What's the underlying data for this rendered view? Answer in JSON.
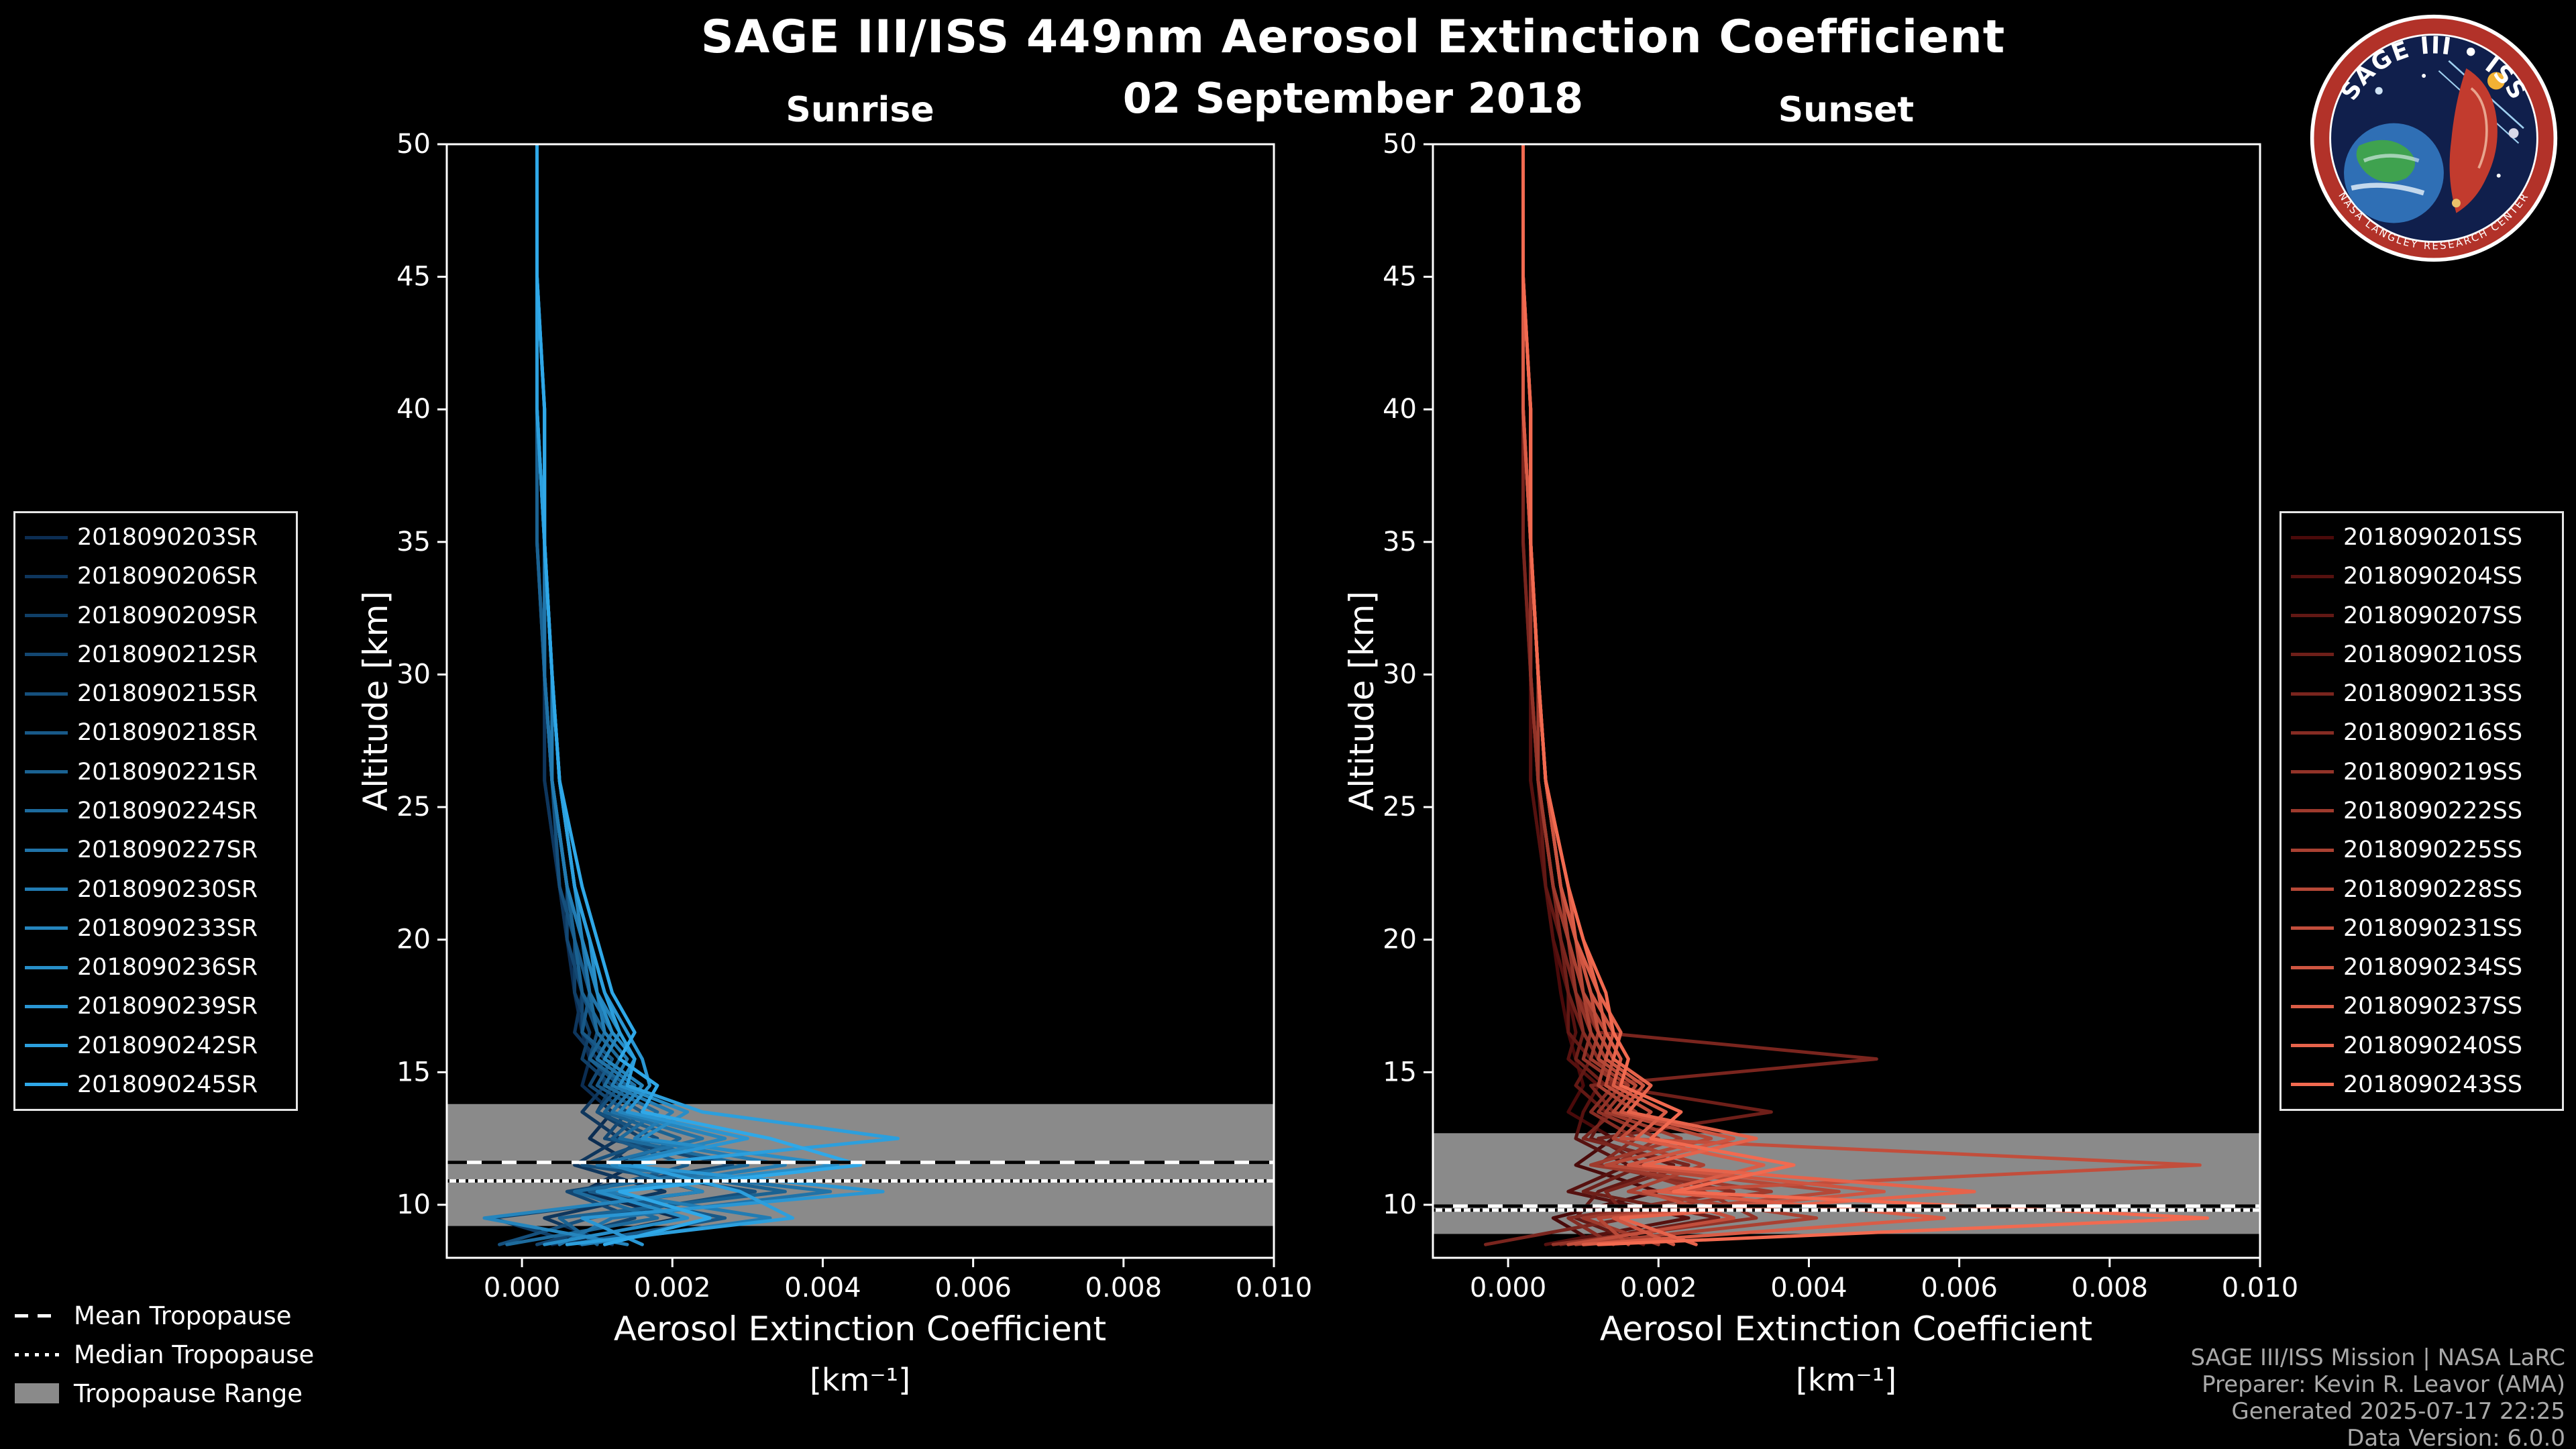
{
  "page": {
    "title": "SAGE III/ISS 449nm Aerosol Extinction Coefficient",
    "subtitle": "02 September 2018",
    "background": "#000000"
  },
  "logo": {
    "title": "SAGE III • ISS",
    "ring_text": "NASA LANGLEY RESEARCH CENTER"
  },
  "tropopause_legend": {
    "mean_label": "Mean Tropopause",
    "median_label": "Median Tropopause",
    "range_label": "Tropopause Range",
    "range_color": "#8a8a8a"
  },
  "credits": {
    "line1": "SAGE III/ISS Mission | NASA LaRC",
    "line2": "Preparer: Kevin R. Leavor (AMA)",
    "line3": "Generated 2025-07-17 22:25",
    "line4": "Data Version: 6.0.0"
  },
  "chart_data": [
    {
      "type": "line",
      "title": "Sunrise",
      "xlabel": "Aerosol Extinction Coefficient",
      "xlabel_units": "[km⁻¹]",
      "ylabel": "Altitude [km]",
      "xlim": [
        -0.001,
        0.01
      ],
      "ylim": [
        8,
        50
      ],
      "xticks": [
        0,
        0.002,
        0.004,
        0.006,
        0.008,
        0.01
      ],
      "xtick_labels": [
        "0.000",
        "0.002",
        "0.004",
        "0.006",
        "0.008",
        "0.010"
      ],
      "yticks": [
        10,
        15,
        20,
        25,
        30,
        35,
        40,
        45,
        50
      ],
      "ytick_labels": [
        "10",
        "15",
        "20",
        "25",
        "30",
        "35",
        "40",
        "45",
        "50"
      ],
      "grid": false,
      "legend_position": "outside-left",
      "tropopause": {
        "mean_km": 11.6,
        "median_km": 10.9,
        "range_km": [
          9.2,
          13.8
        ]
      },
      "altitudes_km": [
        50,
        45,
        40,
        35,
        30,
        26,
        22,
        20,
        18,
        16.5,
        15.5,
        14.5,
        13.5,
        12.5,
        11.5,
        10.5,
        9.5,
        8.5
      ],
      "series": [
        {
          "name": "2018090203SR",
          "color": "#0b2d52",
          "values": [
            0.0002,
            0.0002,
            0.0002,
            0.0002,
            0.0003,
            0.0003,
            0.0005,
            0.0006,
            0.0007,
            0.0008,
            0.0009,
            0.0008,
            0.0012,
            0.0009,
            0.0015,
            0.0008,
            0.0021,
            0.0004
          ]
        },
        {
          "name": "2018090206SR",
          "color": "#0e365d",
          "values": [
            0.0002,
            0.0002,
            0.0002,
            0.0003,
            0.0003,
            0.0003,
            0.0005,
            0.0006,
            0.0008,
            0.0007,
            0.001,
            0.0011,
            0.0008,
            0.0013,
            0.0007,
            0.0019,
            0.0003,
            0.0012
          ]
        },
        {
          "name": "2018090209SR",
          "color": "#103f67",
          "values": [
            0.0002,
            0.0002,
            0.0002,
            0.0002,
            0.0003,
            0.0004,
            0.0005,
            0.0007,
            0.0007,
            0.0009,
            0.0008,
            0.0012,
            0.001,
            0.0016,
            0.0011,
            0.0024,
            -0.0004,
            0.0008
          ]
        },
        {
          "name": "2018090212SR",
          "color": "#134772",
          "values": [
            0.0002,
            0.0002,
            0.0002,
            0.0003,
            0.0003,
            0.0004,
            0.0006,
            0.0006,
            0.0008,
            0.0008,
            0.0011,
            0.0009,
            0.0014,
            0.0011,
            0.0028,
            0.0006,
            0.0015,
            0.0002
          ]
        },
        {
          "name": "2018090215SR",
          "color": "#15507d",
          "values": [
            0.0002,
            0.0002,
            0.0002,
            0.0002,
            0.0003,
            0.0004,
            0.0005,
            0.0007,
            0.0008,
            0.001,
            0.0009,
            0.0013,
            0.001,
            0.0018,
            0.0008,
            0.0031,
            0.0009,
            -0.0003
          ]
        },
        {
          "name": "2018090218SR",
          "color": "#185988",
          "values": [
            0.0002,
            0.0002,
            0.0002,
            0.0003,
            0.0003,
            0.0004,
            0.0006,
            0.0007,
            0.0009,
            0.0008,
            0.0012,
            0.001,
            0.0016,
            0.0012,
            0.0022,
            0.0009,
            0.0027,
            0.0006
          ]
        },
        {
          "name": "2018090221SR",
          "color": "#1a6292",
          "values": [
            0.0002,
            0.0002,
            0.0002,
            0.0002,
            0.0003,
            0.0004,
            0.0006,
            0.0007,
            0.0008,
            0.0011,
            0.0009,
            0.0014,
            0.0011,
            0.0021,
            0.0013,
            0.0035,
            0.0005,
            0.001
          ]
        },
        {
          "name": "2018090224SR",
          "color": "#1d6b9d",
          "values": [
            0.0002,
            0.0002,
            0.0003,
            0.0003,
            0.0003,
            0.0004,
            0.0006,
            0.0008,
            0.0009,
            0.001,
            0.0013,
            0.0011,
            0.0018,
            0.0013,
            0.003,
            0.0007,
            0.0018,
            -0.0002
          ]
        },
        {
          "name": "2018090227SR",
          "color": "#2073a8",
          "values": [
            0.0002,
            0.0002,
            0.0002,
            0.0003,
            0.0003,
            0.0004,
            0.0006,
            0.0008,
            0.0009,
            0.0012,
            0.001,
            0.0015,
            0.0012,
            0.0024,
            0.001,
            0.0041,
            0.0012,
            0.0005
          ]
        },
        {
          "name": "2018090230SR",
          "color": "#227cb3",
          "values": [
            0.0002,
            0.0002,
            0.0002,
            0.0003,
            0.0004,
            0.0004,
            0.0006,
            0.0008,
            0.001,
            0.0011,
            0.0014,
            0.0012,
            0.002,
            0.0015,
            0.0035,
            0.0011,
            0.0033,
            0.0008
          ]
        },
        {
          "name": "2018090233SR",
          "color": "#2585bd",
          "values": [
            0.0002,
            0.0002,
            0.0003,
            0.0003,
            0.0004,
            0.0005,
            0.0007,
            0.0008,
            0.001,
            0.0013,
            0.0011,
            0.0016,
            0.0013,
            0.0027,
            0.0012,
            0.0024,
            -0.0005,
            0.0014
          ]
        },
        {
          "name": "2018090236SR",
          "color": "#278ec8",
          "values": [
            0.0002,
            0.0002,
            0.0002,
            0.0003,
            0.0004,
            0.0005,
            0.0007,
            0.0009,
            0.001,
            0.0012,
            0.0015,
            0.0013,
            0.0022,
            0.0016,
            0.0042,
            0.001,
            0.0022,
            0.0003
          ]
        },
        {
          "name": "2018090239SR",
          "color": "#2a96d3",
          "values": [
            0.0002,
            0.0002,
            0.0003,
            0.0003,
            0.0004,
            0.0005,
            0.0007,
            0.0009,
            0.0011,
            0.0014,
            0.0016,
            0.0017,
            0.0014,
            0.003,
            0.0013,
            0.0048,
            0.0008,
            0.0016
          ]
        },
        {
          "name": "2018090242SR",
          "color": "#2c9fdd",
          "values": [
            0.0002,
            0.0002,
            0.0002,
            0.0003,
            0.0004,
            0.0005,
            0.0007,
            0.0009,
            0.0011,
            0.0013,
            0.0015,
            0.0014,
            0.0024,
            0.005,
            0.0015,
            0.0029,
            0.0036,
            0.0006
          ]
        },
        {
          "name": "2018090245SR",
          "color": "#2fa8e8",
          "values": [
            0.0002,
            0.0002,
            0.0003,
            0.0003,
            0.0004,
            0.0005,
            0.0008,
            0.001,
            0.0012,
            0.0015,
            0.0013,
            0.0018,
            0.0016,
            0.0033,
            0.0045,
            0.0013,
            0.0025,
            0.0011
          ]
        }
      ]
    },
    {
      "type": "line",
      "title": "Sunset",
      "xlabel": "Aerosol Extinction Coefficient",
      "xlabel_units": "[km⁻¹]",
      "ylabel": "Altitude [km]",
      "xlim": [
        -0.001,
        0.01
      ],
      "ylim": [
        8,
        50
      ],
      "xticks": [
        0,
        0.002,
        0.004,
        0.006,
        0.008,
        0.01
      ],
      "xtick_labels": [
        "0.000",
        "0.002",
        "0.004",
        "0.006",
        "0.008",
        "0.010"
      ],
      "yticks": [
        10,
        15,
        20,
        25,
        30,
        35,
        40,
        45,
        50
      ],
      "ytick_labels": [
        "10",
        "15",
        "20",
        "25",
        "30",
        "35",
        "40",
        "45",
        "50"
      ],
      "grid": false,
      "legend_position": "outside-right",
      "tropopause": {
        "mean_km": 9.95,
        "median_km": 9.8,
        "range_km": [
          8.9,
          12.7
        ]
      },
      "altitudes_km": [
        50,
        45,
        40,
        35,
        30,
        26,
        22,
        20,
        18,
        16.5,
        15.5,
        14.5,
        13.5,
        12.5,
        11.5,
        10.5,
        9.5,
        8.5
      ],
      "series": [
        {
          "name": "2018090201SS",
          "color": "#4a0a0a",
          "values": [
            0.0002,
            0.0002,
            0.0002,
            0.0002,
            0.0003,
            0.0003,
            0.0005,
            0.0006,
            0.0007,
            0.0008,
            0.0009,
            0.001,
            0.0008,
            0.0014,
            0.0009,
            0.002,
            0.0006,
            0.0012
          ]
        },
        {
          "name": "2018090204SS",
          "color": "#56110f",
          "values": [
            0.0002,
            0.0002,
            0.0002,
            0.0003,
            0.0003,
            0.0003,
            0.0005,
            0.0006,
            0.0008,
            0.0009,
            0.0008,
            0.0012,
            0.001,
            0.0009,
            0.0016,
            0.0008,
            0.0024,
            0.0005
          ]
        },
        {
          "name": "2018090207SS",
          "color": "#621814",
          "values": [
            0.0002,
            0.0002,
            0.0002,
            0.0002,
            0.0003,
            0.0004,
            0.0005,
            0.0007,
            0.0008,
            0.0008,
            0.0011,
            0.0009,
            0.0013,
            0.0011,
            0.0022,
            0.0012,
            0.0009,
            0.0018
          ]
        },
        {
          "name": "2018090210SS",
          "color": "#6e1f19",
          "values": [
            0.0002,
            0.0002,
            0.0002,
            0.0003,
            0.0003,
            0.0004,
            0.0006,
            0.0007,
            0.0008,
            0.001,
            0.0009,
            0.0013,
            0.0035,
            0.0012,
            0.0018,
            0.001,
            0.0028,
            0.0007
          ]
        },
        {
          "name": "2018090213SS",
          "color": "#7a251e",
          "values": [
            0.0002,
            0.0002,
            0.0002,
            0.0002,
            0.0003,
            0.0004,
            0.0006,
            0.0007,
            0.0009,
            0.0012,
            0.0049,
            0.0011,
            0.0014,
            0.001,
            0.0024,
            0.0013,
            0.0016,
            -0.0003
          ]
        },
        {
          "name": "2018090216SS",
          "color": "#862c23",
          "values": [
            0.0002,
            0.0002,
            0.0002,
            0.0003,
            0.0003,
            0.0004,
            0.0006,
            0.0008,
            0.0009,
            0.001,
            0.0012,
            0.0014,
            0.0011,
            0.0017,
            0.0012,
            0.003,
            0.0008,
            0.0014
          ]
        },
        {
          "name": "2018090219SS",
          "color": "#923328",
          "values": [
            0.0002,
            0.0002,
            0.0003,
            0.0003,
            0.0003,
            0.0004,
            0.0006,
            0.0008,
            0.0009,
            0.0011,
            0.001,
            0.0015,
            0.0012,
            0.002,
            0.0014,
            0.0026,
            0.0033,
            0.0006
          ]
        },
        {
          "name": "2018090222SS",
          "color": "#9e3a2d",
          "values": [
            0.0002,
            0.0002,
            0.0002,
            0.0003,
            0.0004,
            0.0004,
            0.0006,
            0.0008,
            0.001,
            0.0012,
            0.0011,
            0.0016,
            0.0013,
            0.0023,
            0.0011,
            0.0035,
            0.001,
            0.002
          ]
        },
        {
          "name": "2018090225SS",
          "color": "#aa4132",
          "values": [
            0.0002,
            0.0002,
            0.0002,
            0.0003,
            0.0004,
            0.0005,
            0.0007,
            0.0008,
            0.001,
            0.0011,
            0.0013,
            0.0012,
            0.0017,
            0.0014,
            0.0026,
            0.0016,
            0.0041,
            0.0009
          ]
        },
        {
          "name": "2018090228SS",
          "color": "#b64837",
          "values": [
            0.0002,
            0.0002,
            0.0003,
            0.0003,
            0.0004,
            0.0005,
            0.0007,
            0.0009,
            0.001,
            0.0013,
            0.0012,
            0.0017,
            0.0014,
            0.0027,
            0.0013,
            0.0044,
            0.0012,
            0.0016
          ]
        },
        {
          "name": "2018090231SS",
          "color": "#c24e3c",
          "values": [
            0.0002,
            0.0002,
            0.0002,
            0.0003,
            0.0004,
            0.0005,
            0.0007,
            0.0009,
            0.0011,
            0.0012,
            0.0014,
            0.0013,
            0.0019,
            0.0015,
            0.0092,
            0.0018,
            0.003,
            0.0008
          ]
        },
        {
          "name": "2018090234SS",
          "color": "#ce5541",
          "values": [
            0.0002,
            0.0002,
            0.0003,
            0.0003,
            0.0004,
            0.0005,
            0.0007,
            0.0009,
            0.0011,
            0.0014,
            0.0013,
            0.0018,
            0.0015,
            0.003,
            0.0016,
            0.005,
            0.0014,
            0.0022
          ]
        },
        {
          "name": "2018090237SS",
          "color": "#da5c46",
          "values": [
            0.0002,
            0.0002,
            0.0002,
            0.0003,
            0.0004,
            0.0005,
            0.0008,
            0.0009,
            0.0012,
            0.0013,
            0.0015,
            0.0014,
            0.0021,
            0.0017,
            0.0034,
            0.002,
            0.0058,
            0.001
          ]
        },
        {
          "name": "2018090240SS",
          "color": "#e6634b",
          "values": [
            0.0002,
            0.0002,
            0.0003,
            0.0003,
            0.0004,
            0.0005,
            0.0008,
            0.001,
            0.0012,
            0.0015,
            0.0014,
            0.0019,
            0.0016,
            0.0033,
            0.0018,
            0.0062,
            0.0015,
            0.0025
          ]
        },
        {
          "name": "2018090243SS",
          "color": "#f26a50",
          "values": [
            0.0002,
            0.0002,
            0.0003,
            0.0003,
            0.0004,
            0.0005,
            0.0008,
            0.001,
            0.0013,
            0.0014,
            0.0016,
            0.0015,
            0.0023,
            0.0019,
            0.0038,
            0.0022,
            0.0093,
            0.0012
          ]
        }
      ]
    }
  ]
}
